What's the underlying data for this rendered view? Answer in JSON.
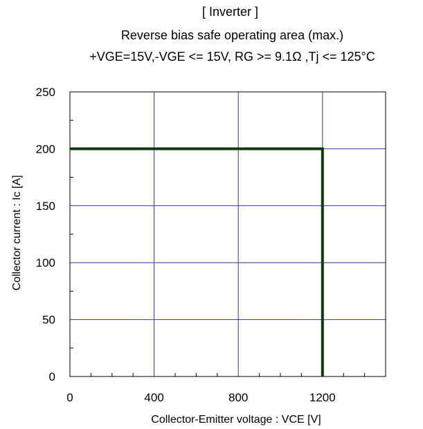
{
  "chart_data": {
    "type": "line",
    "title": "[ Inverter ]",
    "subtitle": "Reverse bias safe operating area (max.)",
    "conditions": "+VGE=15V,-VGE <= 15V, RG >= 9.1Ω ,Tj <= 125°C",
    "xlabel": "Collector-Emitter voltage : VCE [V]",
    "ylabel": "Collector current : Ic [A]",
    "xlim": [
      0,
      1500
    ],
    "ylim": [
      0,
      250
    ],
    "xticks": [
      0,
      400,
      800,
      1200
    ],
    "yticks": [
      0,
      50,
      100,
      150,
      200,
      250
    ],
    "grid": true,
    "series": [
      {
        "x": [
          0,
          1200,
          1200
        ],
        "y": [
          200,
          200,
          0
        ],
        "color": "#0e3a10"
      }
    ],
    "colors": {
      "grid": "#3333aa",
      "frame": "#000000"
    }
  }
}
